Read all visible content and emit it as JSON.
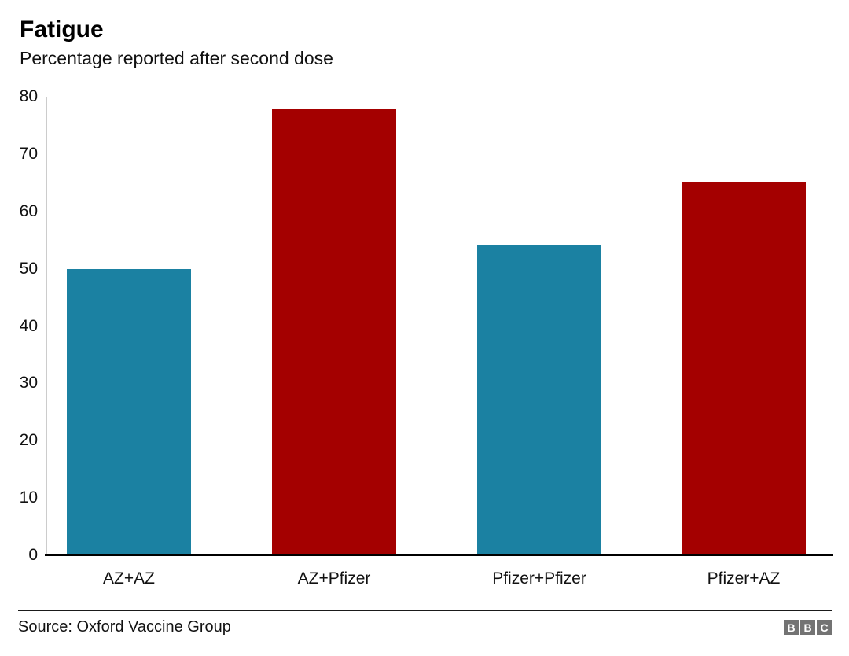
{
  "header": {
    "title": "Fatigue",
    "subtitle": "Percentage reported after second dose"
  },
  "chart_data": {
    "type": "bar",
    "title": "Fatigue",
    "subtitle": "Percentage reported after second dose",
    "categories": [
      "AZ+AZ",
      "AZ+Pfizer",
      "Pfizer+Pfizer",
      "Pfizer+AZ"
    ],
    "values": [
      50,
      78,
      54,
      65
    ],
    "bar_colors": [
      "#1b81a2",
      "#a40000",
      "#1b81a2",
      "#a40000"
    ],
    "xlabel": "",
    "ylabel": "",
    "ylim": [
      0,
      80
    ],
    "yticks": [
      "0",
      "10",
      "20",
      "30",
      "40",
      "50",
      "60",
      "70",
      "80"
    ],
    "grid": false,
    "legend": false,
    "accent_teal": "#1b81a2",
    "accent_red": "#a40000"
  },
  "footer": {
    "source": "Source: Oxford Vaccine Group",
    "logo_letters": [
      "B",
      "B",
      "C"
    ],
    "logo_color": "#737373"
  }
}
